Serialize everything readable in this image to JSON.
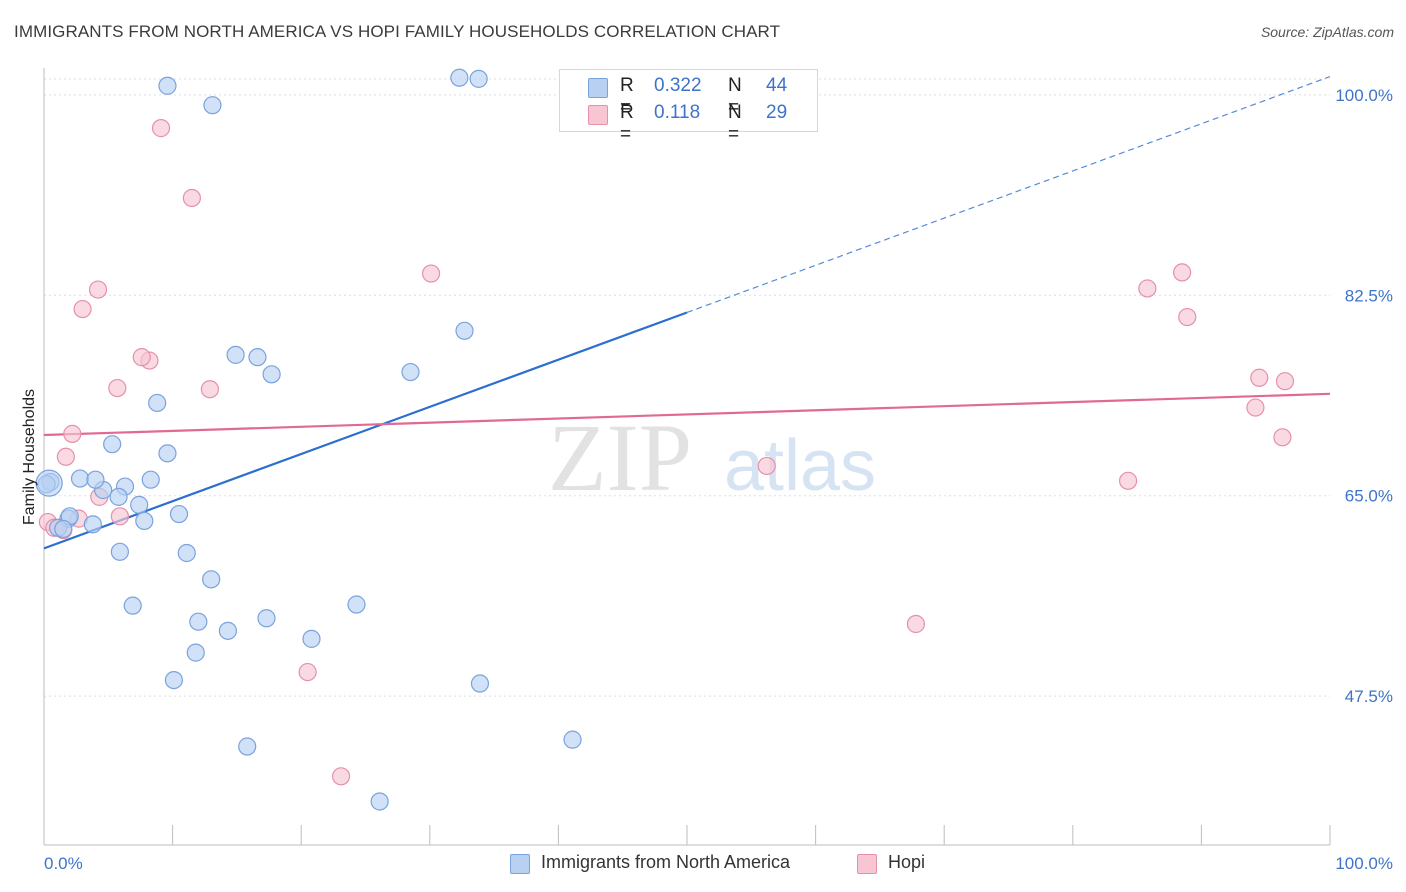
{
  "header": {
    "title": "IMMIGRANTS FROM NORTH AMERICA VS HOPI FAMILY HOUSEHOLDS CORRELATION CHART",
    "source": "Source: ZipAtlas.com"
  },
  "legend_top": {
    "rows": [
      {
        "r_label": "R =",
        "r_value": "0.322",
        "n_label": "N =",
        "n_value": "44"
      },
      {
        "r_label": "R =",
        "r_value": "0.118",
        "n_label": "N =",
        "n_value": "29"
      }
    ]
  },
  "legend_bottom": {
    "items": [
      {
        "label": "Immigrants from North America"
      },
      {
        "label": "Hopi"
      }
    ]
  },
  "watermark": {
    "zip": "ZIP",
    "atlas": "atlas"
  },
  "colors": {
    "blue_fill": "#b8d1f2",
    "blue_stroke": "#7aa3dc",
    "blue_line": "#2b6fcf",
    "pink_fill": "#f8c6d3",
    "pink_stroke": "#e690ab",
    "pink_line": "#e06a92",
    "tick_label": "#3d74c9",
    "grid": "#dddddd"
  },
  "chart_data": {
    "type": "scatter",
    "title": "IMMIGRANTS FROM NORTH AMERICA VS HOPI FAMILY HOUSEHOLDS CORRELATION CHART",
    "xlabel": "",
    "ylabel": "Family Households",
    "x_tick_labels": [
      "0.0%",
      "100.0%"
    ],
    "y_tick_labels": [
      "100.0%",
      "82.5%",
      "65.0%",
      "47.5%"
    ],
    "y_ticks": [
      100.0,
      82.5,
      65.0,
      47.5
    ],
    "xlim": [
      0,
      100
    ],
    "ylim": [
      34.5,
      102
    ],
    "grid": true,
    "legend_position": "bottom",
    "series": [
      {
        "name": "Immigrants from North America",
        "color": "#b8d1f2",
        "points": [
          [
            9.6,
            100.8
          ],
          [
            13.1,
            99.1
          ],
          [
            32.3,
            101.5
          ],
          [
            33.8,
            101.4
          ],
          [
            46.0,
            101.3
          ],
          [
            14.9,
            77.3
          ],
          [
            16.6,
            77.1
          ],
          [
            17.7,
            75.6
          ],
          [
            28.5,
            75.8
          ],
          [
            32.7,
            79.4
          ],
          [
            8.8,
            73.1
          ],
          [
            5.3,
            69.5
          ],
          [
            9.6,
            68.7
          ],
          [
            0.5,
            66.2
          ],
          [
            2.8,
            66.5
          ],
          [
            6.3,
            65.8
          ],
          [
            8.3,
            66.4
          ],
          [
            4.6,
            65.5
          ],
          [
            5.8,
            64.9
          ],
          [
            7.4,
            64.2
          ],
          [
            1.9,
            63.0
          ],
          [
            3.8,
            62.5
          ],
          [
            7.8,
            62.8
          ],
          [
            10.5,
            63.4
          ],
          [
            1.1,
            62.2
          ],
          [
            5.9,
            60.1
          ],
          [
            11.1,
            60.0
          ],
          [
            13.0,
            57.7
          ],
          [
            6.9,
            55.4
          ],
          [
            12.0,
            54.0
          ],
          [
            14.3,
            53.2
          ],
          [
            17.3,
            54.3
          ],
          [
            20.8,
            52.5
          ],
          [
            24.3,
            55.5
          ],
          [
            11.8,
            51.3
          ],
          [
            10.1,
            48.9
          ],
          [
            33.9,
            48.6
          ],
          [
            41.1,
            43.7
          ],
          [
            15.8,
            43.1
          ],
          [
            26.1,
            38.3
          ],
          [
            0.2,
            66.0
          ],
          [
            2.0,
            63.2
          ],
          [
            4.0,
            66.4
          ],
          [
            1.5,
            62.1
          ]
        ]
      },
      {
        "name": "Hopi",
        "color": "#f8c6d3",
        "points": [
          [
            9.1,
            97.1
          ],
          [
            11.5,
            91.0
          ],
          [
            4.2,
            83.0
          ],
          [
            3.0,
            81.3
          ],
          [
            30.1,
            84.4
          ],
          [
            8.2,
            76.8
          ],
          [
            7.6,
            77.1
          ],
          [
            5.7,
            74.4
          ],
          [
            12.9,
            74.3
          ],
          [
            2.2,
            70.4
          ],
          [
            1.7,
            68.4
          ],
          [
            0.3,
            62.7
          ],
          [
            0.8,
            62.2
          ],
          [
            2.7,
            63.0
          ],
          [
            4.3,
            64.9
          ],
          [
            5.9,
            63.2
          ],
          [
            56.2,
            67.6
          ],
          [
            20.5,
            49.6
          ],
          [
            23.1,
            40.5
          ],
          [
            67.8,
            53.8
          ],
          [
            85.8,
            83.1
          ],
          [
            88.5,
            84.5
          ],
          [
            88.9,
            80.6
          ],
          [
            94.5,
            75.3
          ],
          [
            96.5,
            75.0
          ],
          [
            96.3,
            70.1
          ],
          [
            94.2,
            72.7
          ],
          [
            84.3,
            66.3
          ],
          [
            1.5,
            62.0
          ]
        ]
      }
    ],
    "trend_lines": [
      {
        "series": "Immigrants from North America",
        "x": [
          0,
          50
        ],
        "y": [
          60.4,
          81.0
        ],
        "extrapolated_to": [
          100,
          101.6
        ],
        "style": "solid then dashed"
      },
      {
        "series": "Hopi",
        "x": [
          0,
          100
        ],
        "y": [
          70.3,
          73.9
        ],
        "style": "solid"
      }
    ]
  }
}
